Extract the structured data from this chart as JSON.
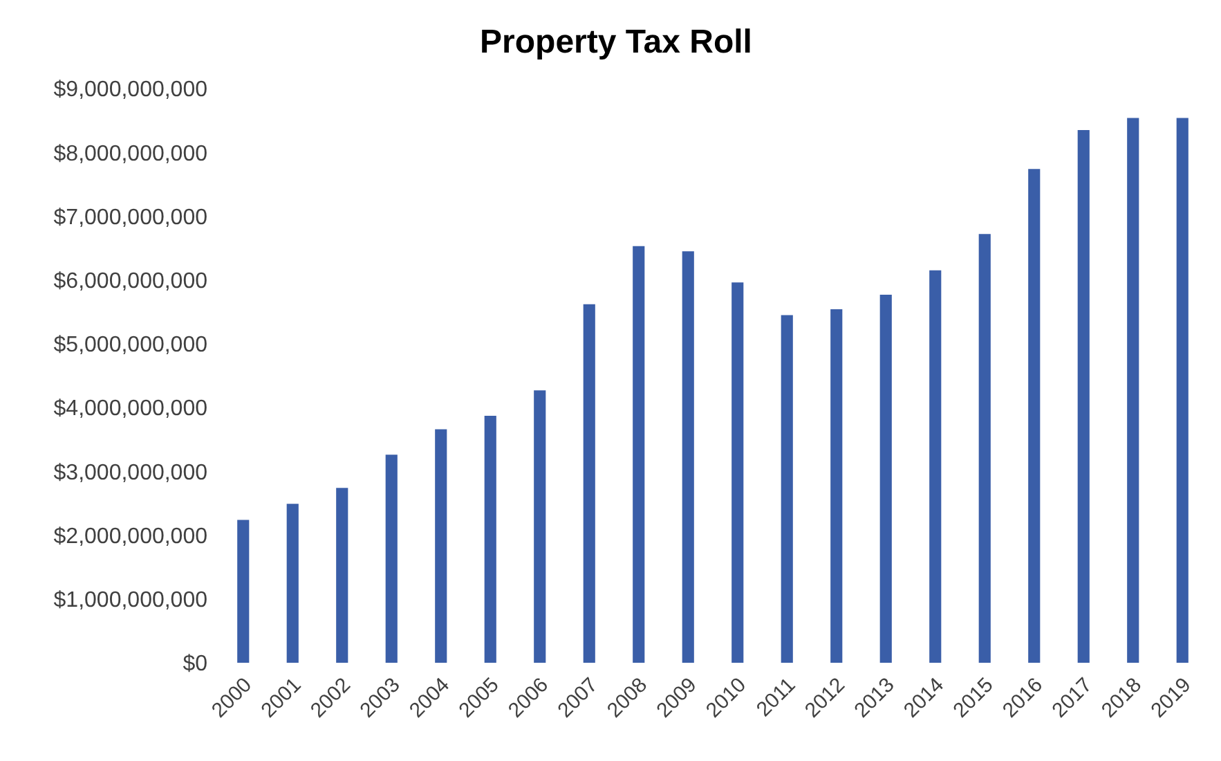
{
  "chart_data": {
    "type": "bar",
    "title": "Property Tax Roll",
    "categories": [
      "2000",
      "2001",
      "2002",
      "2003",
      "2004",
      "2005",
      "2006",
      "2007",
      "2008",
      "2009",
      "2010",
      "2011",
      "2012",
      "2013",
      "2014",
      "2015",
      "2016",
      "2017",
      "2018",
      "2019"
    ],
    "values": [
      2240000000,
      2490000000,
      2740000000,
      3260000000,
      3660000000,
      3870000000,
      4270000000,
      5620000000,
      6530000000,
      6450000000,
      5960000000,
      5450000000,
      5540000000,
      5770000000,
      6150000000,
      6720000000,
      7740000000,
      8350000000,
      8540000000,
      8540000000
    ],
    "color": "#3a5ea8",
    "ylim": [
      0,
      9000000000
    ],
    "yticks": [
      {
        "value": 0,
        "label": "$0"
      },
      {
        "value": 1000000000,
        "label": "$1,000,000,000"
      },
      {
        "value": 2000000000,
        "label": "$2,000,000,000"
      },
      {
        "value": 3000000000,
        "label": "$3,000,000,000"
      },
      {
        "value": 4000000000,
        "label": "$4,000,000,000"
      },
      {
        "value": 5000000000,
        "label": "$5,000,000,000"
      },
      {
        "value": 6000000000,
        "label": "$6,000,000,000"
      },
      {
        "value": 7000000000,
        "label": "$7,000,000,000"
      },
      {
        "value": 8000000000,
        "label": "$8,000,000,000"
      },
      {
        "value": 9000000000,
        "label": "$9,000,000,000"
      }
    ],
    "grid": false
  }
}
